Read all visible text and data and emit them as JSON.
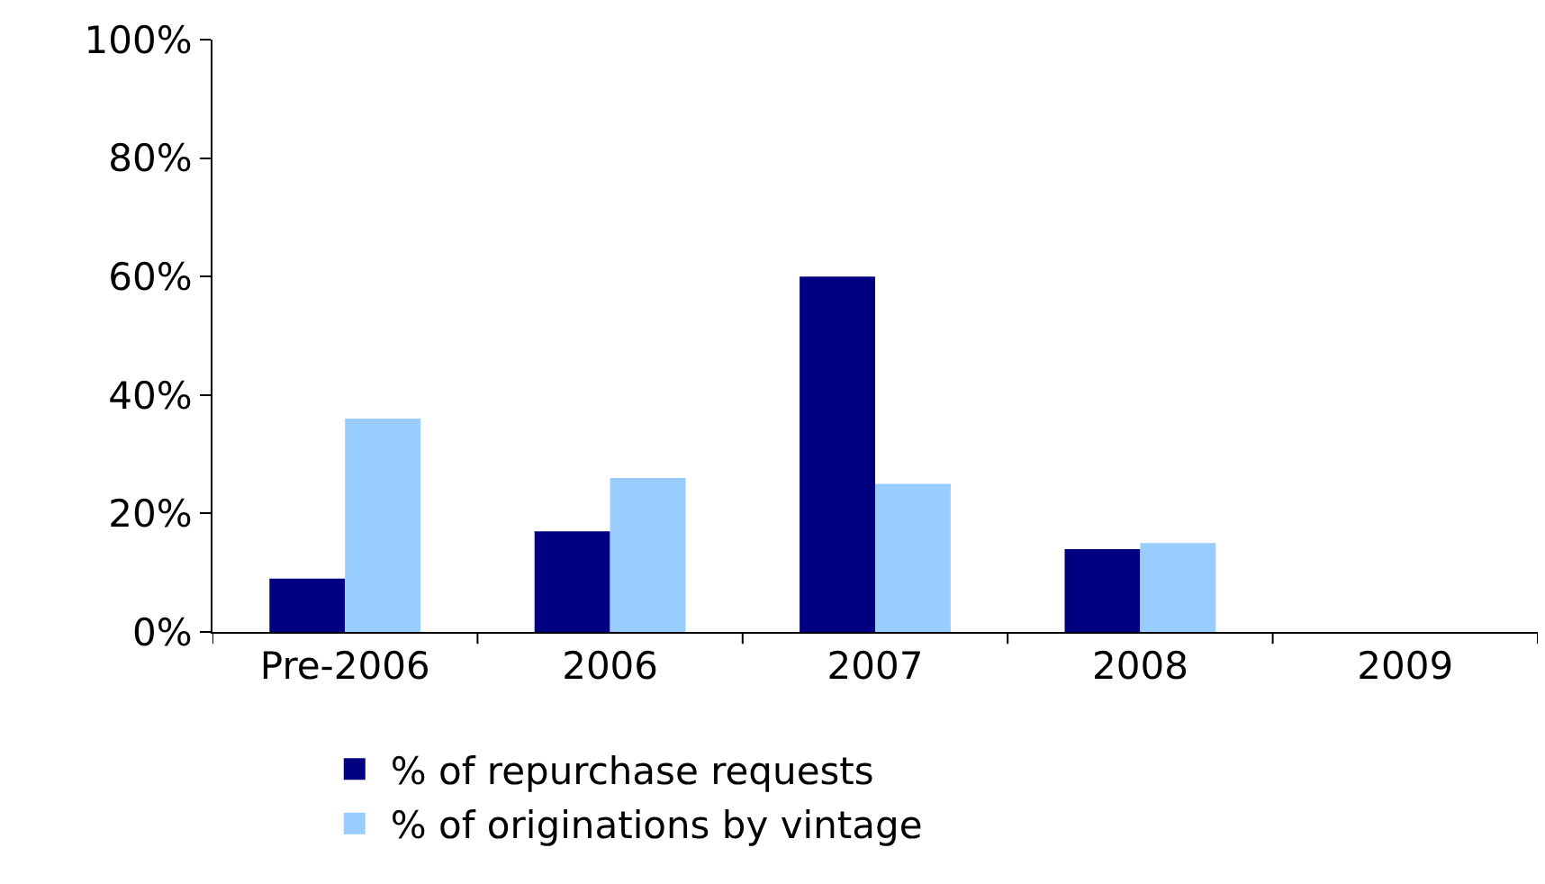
{
  "chart_data": {
    "type": "bar",
    "categories": [
      "Pre-2006",
      "2006",
      "2007",
      "2008",
      "2009"
    ],
    "series": [
      {
        "name": "% of repurchase requests",
        "color": "#000080",
        "values": [
          9,
          17,
          60,
          14,
          null
        ]
      },
      {
        "name": "% of originations by vintage",
        "color": "#99ccff",
        "values": [
          36,
          26,
          25,
          15,
          null
        ]
      }
    ],
    "ylim": [
      0,
      100
    ],
    "yticks": [
      {
        "value": 0,
        "label": "0%"
      },
      {
        "value": 20,
        "label": "20%"
      },
      {
        "value": 40,
        "label": "40%"
      },
      {
        "value": 60,
        "label": "60%"
      },
      {
        "value": 80,
        "label": "80%"
      },
      {
        "value": 100,
        "label": "100%"
      }
    ],
    "grid": false,
    "legend": "bottom"
  }
}
